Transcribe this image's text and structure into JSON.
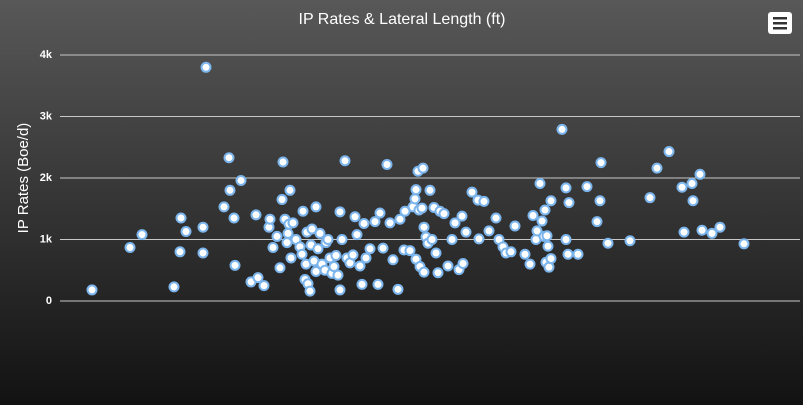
{
  "chart_data": {
    "type": "scatter",
    "title": "IP Rates & Lateral Length (ft)",
    "y_label": "IP Rates (Boe/d)",
    "color": "#7cb5ec",
    "x": [
      320,
      700,
      820,
      1140,
      1200,
      1210,
      1260,
      1430,
      1430,
      1460,
      1640,
      1690,
      1700,
      1740,
      1750,
      1810,
      1910,
      1960,
      1980,
      2040,
      2090,
      2100,
      2130,
      2170,
      2200,
      2220,
      2230,
      2250,
      2270,
      2280,
      2290,
      2300,
      2310,
      2330,
      2360,
      2400,
      2420,
      2430,
      2450,
      2460,
      2470,
      2480,
      2500,
      2510,
      2520,
      2540,
      2560,
      2560,
      2580,
      2600,
      2620,
      2650,
      2660,
      2680,
      2700,
      2720,
      2740,
      2760,
      2780,
      2800,
      2800,
      2820,
      2850,
      2870,
      2900,
      2930,
      2950,
      2970,
      3000,
      3020,
      3040,
      3060,
      3100,
      3150,
      3180,
      3200,
      3230,
      3270,
      3300,
      3330,
      3380,
      3400,
      3440,
      3450,
      3500,
      3530,
      3550,
      3560,
      3560,
      3580,
      3590,
      3600,
      3620,
      3630,
      3640,
      3660,
      3680,
      3640,
      3700,
      3720,
      3740,
      3760,
      3780,
      3800,
      3840,
      3880,
      3920,
      3950,
      3990,
      4020,
      4030,
      4060,
      4120,
      4180,
      4190,
      4240,
      4290,
      4360,
      4390,
      4430,
      4460,
      4510,
      4550,
      4650,
      4700,
      4730,
      4760,
      4770,
      4800,
      4820,
      4840,
      4850,
      4860,
      4870,
      4880,
      4890,
      4910,
      4910,
      5020,
      5060,
      5060,
      5080,
      5090,
      5180,
      5270,
      5370,
      5400,
      5410,
      5480,
      5700,
      5900,
      5970,
      6090,
      6220,
      6240,
      6320,
      6330,
      6400,
      6420,
      6520,
      6600,
      6840
    ],
    "values": [
      180,
      870,
      1080,
      230,
      800,
      1350,
      1130,
      780,
      1200,
      3800,
      1530,
      2330,
      1800,
      1350,
      580,
      1960,
      310,
      1400,
      380,
      250,
      1200,
      1330,
      870,
      1050,
      540,
      1650,
      2260,
      1330,
      950,
      1100,
      1250,
      1800,
      700,
      1270,
      1000,
      880,
      760,
      1460,
      350,
      600,
      1120,
      280,
      160,
      910,
      1170,
      650,
      480,
      1530,
      850,
      1100,
      600,
      500,
      950,
      1000,
      700,
      450,
      560,
      740,
      420,
      1450,
      180,
      1000,
      2280,
      700,
      620,
      750,
      1370,
      1080,
      570,
      270,
      1260,
      700,
      850,
      1290,
      270,
      1430,
      860,
      2220,
      1270,
      670,
      190,
      1330,
      830,
      1460,
      820,
      1530,
      1660,
      1810,
      680,
      2110,
      1480,
      560,
      1510,
      2160,
      1200,
      1040,
      940,
      470,
      1800,
      1000,
      1520,
      780,
      460,
      1460,
      1420,
      570,
      1000,
      1270,
      510,
      1380,
      610,
      1120,
      1770,
      1640,
      1010,
      1620,
      1140,
      1350,
      1000,
      880,
      780,
      800,
      1220,
      760,
      600,
      1390,
      1000,
      1140,
      1910,
      1300,
      1050,
      1480,
      630,
      1060,
      890,
      550,
      1630,
      690,
      2790,
      1840,
      1000,
      760,
      1600,
      760,
      1860,
      1290,
      1630,
      2250,
      940,
      980,
      1680,
      2160,
      2430,
      1850,
      1120,
      1910,
      1630,
      2060,
      1150,
      1100,
      1200,
      930
    ],
    "xlim": [
      0,
      7400
    ],
    "ylim": [
      0,
      4000
    ],
    "yticks": [
      {
        "value": 0,
        "label": "0"
      },
      {
        "value": 1000,
        "label": "1k"
      },
      {
        "value": 2000,
        "label": "2k"
      },
      {
        "value": 3000,
        "label": "3k"
      },
      {
        "value": 4000,
        "label": "4k"
      }
    ],
    "grid": true
  }
}
